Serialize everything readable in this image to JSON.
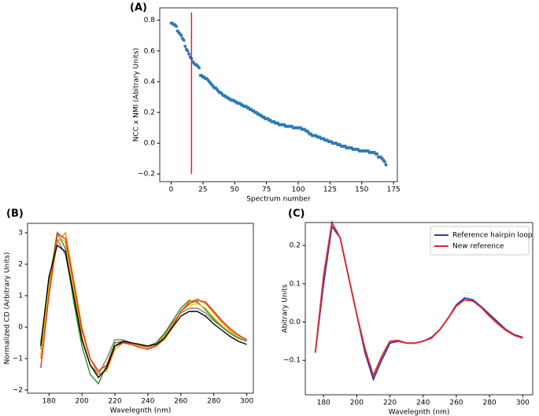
{
  "chart_data": [
    {
      "type": "scatter",
      "label": "(A)",
      "xlabel": "Spectrum number",
      "ylabel": "NCC x NMI (Abitrary Units)",
      "color": "#2c7bb6",
      "x": [
        0,
        1,
        2,
        3,
        4,
        5,
        6,
        7,
        8,
        9,
        10,
        11,
        12,
        13,
        14,
        15,
        16,
        17,
        18,
        19,
        20,
        21,
        22,
        23,
        24,
        25,
        26,
        27,
        28,
        29,
        30,
        31,
        32,
        33,
        34,
        35,
        36,
        37,
        38,
        39,
        40,
        41,
        42,
        43,
        44,
        45,
        46,
        47,
        48,
        49,
        50,
        51,
        52,
        53,
        54,
        55,
        56,
        57,
        58,
        59,
        60,
        61,
        62,
        63,
        64,
        65,
        66,
        67,
        68,
        69,
        70,
        71,
        72,
        73,
        74,
        75,
        76,
        77,
        78,
        79,
        80,
        81,
        82,
        83,
        84,
        85,
        86,
        87,
        88,
        89,
        90,
        91,
        92,
        93,
        94,
        95,
        96,
        97,
        98,
        99,
        100,
        101,
        102,
        103,
        104,
        105,
        106,
        107,
        108,
        109,
        110,
        111,
        112,
        113,
        114,
        115,
        116,
        117,
        118,
        119,
        120,
        121,
        122,
        123,
        124,
        125,
        126,
        127,
        128,
        129,
        130,
        131,
        132,
        133,
        134,
        135,
        136,
        137,
        138,
        139,
        140,
        141,
        142,
        143,
        144,
        145,
        146,
        147,
        148,
        149,
        150,
        151,
        152,
        153,
        154,
        155,
        156,
        157,
        158,
        159,
        160,
        161,
        162,
        163,
        164,
        165,
        166,
        167,
        168,
        169
      ],
      "values": [
        0.78,
        0.78,
        0.77,
        0.77,
        0.76,
        0.73,
        0.72,
        0.71,
        0.7,
        0.68,
        0.67,
        0.63,
        0.61,
        0.6,
        0.58,
        0.56,
        0.55,
        0.53,
        0.52,
        0.51,
        0.51,
        0.5,
        0.49,
        0.44,
        0.44,
        0.43,
        0.43,
        0.42,
        0.42,
        0.41,
        0.4,
        0.39,
        0.38,
        0.37,
        0.36,
        0.36,
        0.35,
        0.34,
        0.33,
        0.33,
        0.32,
        0.31,
        0.31,
        0.3,
        0.3,
        0.29,
        0.29,
        0.28,
        0.28,
        0.28,
        0.27,
        0.27,
        0.26,
        0.26,
        0.26,
        0.25,
        0.25,
        0.24,
        0.24,
        0.24,
        0.23,
        0.23,
        0.22,
        0.22,
        0.21,
        0.21,
        0.2,
        0.2,
        0.19,
        0.19,
        0.18,
        0.18,
        0.17,
        0.17,
        0.16,
        0.16,
        0.16,
        0.15,
        0.15,
        0.14,
        0.14,
        0.14,
        0.13,
        0.13,
        0.13,
        0.12,
        0.12,
        0.12,
        0.12,
        0.12,
        0.11,
        0.11,
        0.11,
        0.11,
        0.11,
        0.11,
        0.1,
        0.1,
        0.1,
        0.1,
        0.1,
        0.1,
        0.1,
        0.09,
        0.09,
        0.09,
        0.08,
        0.08,
        0.07,
        0.06,
        0.06,
        0.05,
        0.05,
        0.05,
        0.05,
        0.04,
        0.04,
        0.04,
        0.03,
        0.03,
        0.03,
        0.02,
        0.02,
        0.02,
        0.01,
        0.01,
        0.01,
        0.0,
        0.0,
        0.0,
        0.0,
        -0.01,
        -0.01,
        -0.01,
        -0.02,
        -0.02,
        -0.02,
        -0.02,
        -0.03,
        -0.03,
        -0.03,
        -0.03,
        -0.03,
        -0.04,
        -0.04,
        -0.04,
        -0.04,
        -0.04,
        -0.05,
        -0.05,
        -0.05,
        -0.05,
        -0.05,
        -0.05,
        -0.05,
        -0.05,
        -0.06,
        -0.06,
        -0.06,
        -0.06,
        -0.06,
        -0.07,
        -0.07,
        -0.09,
        -0.09,
        -0.09,
        -0.1,
        -0.11,
        -0.12,
        -0.14
      ],
      "vline": {
        "x": 16,
        "ymin": -0.2,
        "ymax": 0.85,
        "color": "#d62728"
      },
      "xlim": [
        -9,
        178
      ],
      "xticks": [
        0,
        25,
        50,
        75,
        100,
        125,
        150,
        175
      ],
      "ylim": [
        -0.25,
        0.88
      ],
      "yticks": [
        {
          "value": -0.2,
          "label": "−0.2"
        },
        {
          "value": 0,
          "label": "0.0"
        },
        0.2,
        0.4,
        0.6,
        0.8
      ]
    },
    {
      "type": "line",
      "label": "(B)",
      "xlabel": "Wavelegnth (nm)",
      "ylabel": "Normalized CD (Arbitrary Units)",
      "x": [
        175,
        180,
        185,
        190,
        195,
        200,
        205,
        210,
        215,
        220,
        225,
        230,
        235,
        240,
        245,
        250,
        255,
        260,
        265,
        270,
        275,
        280,
        285,
        290,
        295,
        300
      ],
      "series": [
        {
          "color": "#808080",
          "values": [
            -0.7,
            1.5,
            2.8,
            2.3,
            0.9,
            -0.4,
            -1.2,
            -1.5,
            -1.0,
            -0.4,
            -0.4,
            -0.5,
            -0.55,
            -0.6,
            -0.5,
            -0.25,
            0.15,
            0.45,
            0.6,
            0.6,
            0.45,
            0.2,
            0,
            -0.2,
            -0.35,
            -0.45
          ]
        },
        {
          "color": "#2e8b2e",
          "values": [
            -0.5,
            1.4,
            3.0,
            2.5,
            0.8,
            -0.6,
            -1.5,
            -1.8,
            -1.2,
            -0.5,
            -0.45,
            -0.55,
            -0.6,
            -0.6,
            -0.5,
            -0.2,
            0.2,
            0.6,
            0.85,
            0.8,
            0.55,
            0.25,
            0,
            -0.2,
            -0.35,
            -0.45
          ]
        },
        {
          "color": "#ff8c00",
          "values": [
            -1.0,
            1.0,
            2.7,
            3.0,
            1.5,
            0,
            -1.0,
            -1.5,
            -1.4,
            -0.7,
            -0.5,
            -0.55,
            -0.6,
            -0.65,
            -0.6,
            -0.4,
            0,
            0.5,
            0.8,
            0.9,
            0.75,
            0.45,
            0.15,
            -0.1,
            -0.3,
            -0.4
          ]
        },
        {
          "color": "#e6c200",
          "values": [
            -0.9,
            1.3,
            2.9,
            2.7,
            1.2,
            -0.3,
            -1.2,
            -1.6,
            -1.3,
            -0.6,
            -0.5,
            -0.5,
            -0.55,
            -0.6,
            -0.55,
            -0.3,
            0.1,
            0.5,
            0.7,
            0.75,
            0.6,
            0.3,
            0.05,
            -0.15,
            -0.3,
            -0.4
          ]
        },
        {
          "color": "#e03020",
          "values": [
            -1.3,
            1.0,
            3.0,
            2.8,
            1.4,
            -0.1,
            -1.0,
            -1.4,
            -1.2,
            -0.6,
            -0.5,
            -0.55,
            -0.65,
            -0.7,
            -0.6,
            -0.35,
            0.05,
            0.5,
            0.75,
            0.85,
            0.8,
            0.5,
            0.2,
            -0.05,
            -0.25,
            -0.4
          ]
        },
        {
          "color": "#000000",
          "values": [
            -0.6,
            1.6,
            2.6,
            2.4,
            1.0,
            -0.4,
            -1.2,
            -1.6,
            -1.3,
            -0.6,
            -0.45,
            -0.5,
            -0.55,
            -0.6,
            -0.55,
            -0.35,
            0,
            0.35,
            0.5,
            0.5,
            0.35,
            0.1,
            -0.1,
            -0.3,
            -0.45,
            -0.55
          ]
        }
      ],
      "xlim": [
        167,
        304
      ],
      "xticks": [
        180,
        200,
        220,
        240,
        260,
        280,
        300
      ],
      "ylim": [
        -2.1,
        3.3
      ],
      "yticks": [
        {
          "value": -2,
          "label": "−2"
        },
        {
          "value": -1,
          "label": "−1"
        },
        0,
        1,
        2,
        3
      ]
    },
    {
      "type": "line",
      "label": "(C)",
      "xlabel": "Wavelegnth (nm)",
      "ylabel": "Abitrary Units",
      "legend": "upper right",
      "x": [
        175,
        180,
        185,
        190,
        195,
        200,
        205,
        210,
        215,
        220,
        225,
        230,
        235,
        240,
        245,
        250,
        255,
        260,
        265,
        270,
        275,
        280,
        285,
        290,
        295,
        300
      ],
      "series": [
        {
          "name": "Reference hairpin loop",
          "color": "#2b3ea8",
          "values": [
            -0.08,
            0.1,
            0.25,
            0.22,
            0.12,
            0.02,
            -0.08,
            -0.15,
            -0.1,
            -0.055,
            -0.05,
            -0.055,
            -0.055,
            -0.05,
            -0.04,
            -0.02,
            0.01,
            0.045,
            0.063,
            0.058,
            0.04,
            0.02,
            0.0,
            -0.02,
            -0.033,
            -0.04
          ]
        },
        {
          "name": "New reference",
          "color": "#e02828",
          "values": [
            -0.08,
            0.12,
            0.26,
            0.22,
            0.12,
            0.02,
            -0.07,
            -0.14,
            -0.09,
            -0.05,
            -0.048,
            -0.055,
            -0.055,
            -0.05,
            -0.042,
            -0.02,
            0.01,
            0.042,
            0.058,
            0.055,
            0.038,
            0.015,
            -0.005,
            -0.022,
            -0.035,
            -0.042
          ]
        }
      ],
      "xlim": [
        169,
        306
      ],
      "xticks": [
        180,
        200,
        220,
        240,
        260,
        280,
        300
      ],
      "ylim": [
        -0.19,
        0.26
      ],
      "yticks": [
        {
          "value": -0.1,
          "label": "−0.1"
        },
        {
          "value": 0,
          "label": "0.0"
        },
        0.1,
        0.2
      ]
    }
  ]
}
